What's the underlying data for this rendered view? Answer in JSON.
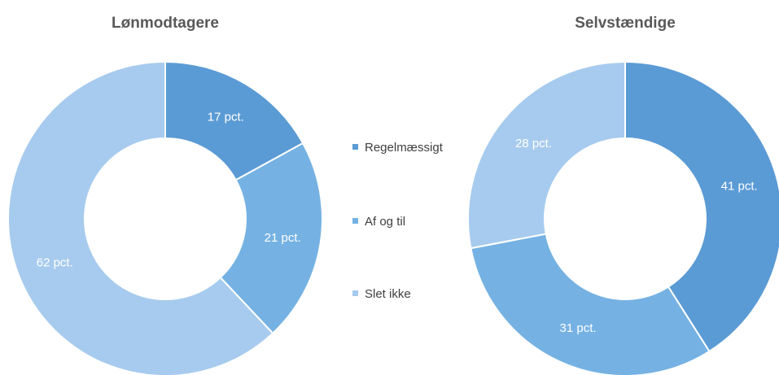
{
  "colors": {
    "regelmaessigt": "#5b9bd5",
    "af_og_til": "#75b2e3",
    "slet_ikke": "#a7cbee",
    "background": "#ffffff"
  },
  "legend": {
    "items": [
      {
        "label": "Regelmæssigt",
        "color": "#5b9bd5"
      },
      {
        "label": "Af og til",
        "color": "#75b2e3"
      },
      {
        "label": "Slet ikke",
        "color": "#a7cbee"
      }
    ]
  },
  "chart_data": [
    {
      "type": "pie",
      "title": "Lønmodtagere",
      "categories": [
        "Regelmæssigt",
        "Af og til",
        "Slet ikke"
      ],
      "values": [
        17,
        21,
        62
      ],
      "data_labels": [
        "17 pct.",
        "21 pct.",
        "62 pct."
      ],
      "colors": [
        "#5b9bd5",
        "#75b2e3",
        "#a7cbee"
      ],
      "legend": "right"
    },
    {
      "type": "pie",
      "title": "Selvstændige",
      "categories": [
        "Regelmæssigt",
        "Af og til",
        "Slet ikke"
      ],
      "values": [
        41,
        31,
        28
      ],
      "data_labels": [
        "41 pct.",
        "31 pct.",
        "28 pct."
      ],
      "colors": [
        "#5b9bd5",
        "#75b2e3",
        "#a7cbee"
      ],
      "legend": "left"
    }
  ]
}
